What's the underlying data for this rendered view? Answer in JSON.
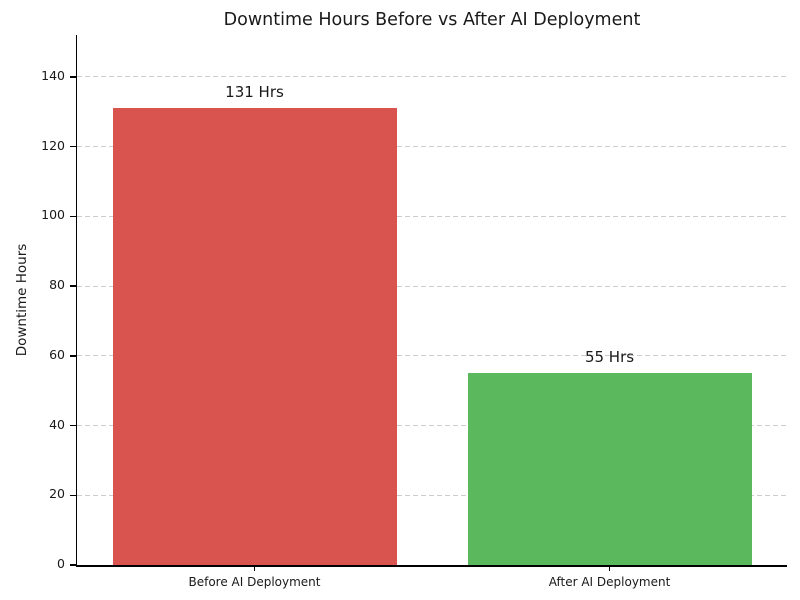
{
  "chart_data": {
    "type": "bar",
    "title": "Downtime Hours Before vs After AI Deployment",
    "xlabel": "",
    "ylabel": "Downtime Hours",
    "categories": [
      "Before AI Deployment",
      "After AI Deployment"
    ],
    "values": [
      131,
      55
    ],
    "bar_labels": [
      "131 Hrs",
      "55 Hrs"
    ],
    "bar_colors": [
      "#d9534f",
      "#5cb85c"
    ],
    "ylim": [
      0,
      152
    ],
    "yticks": [
      0,
      20,
      40,
      60,
      80,
      100,
      120,
      140
    ],
    "grid": {
      "axis": "y",
      "style": "dashed",
      "color": "#cccccc"
    },
    "legend": "none",
    "background": "#ffffff",
    "axis_color": "#000000",
    "text_color": "#1a1a1a"
  }
}
